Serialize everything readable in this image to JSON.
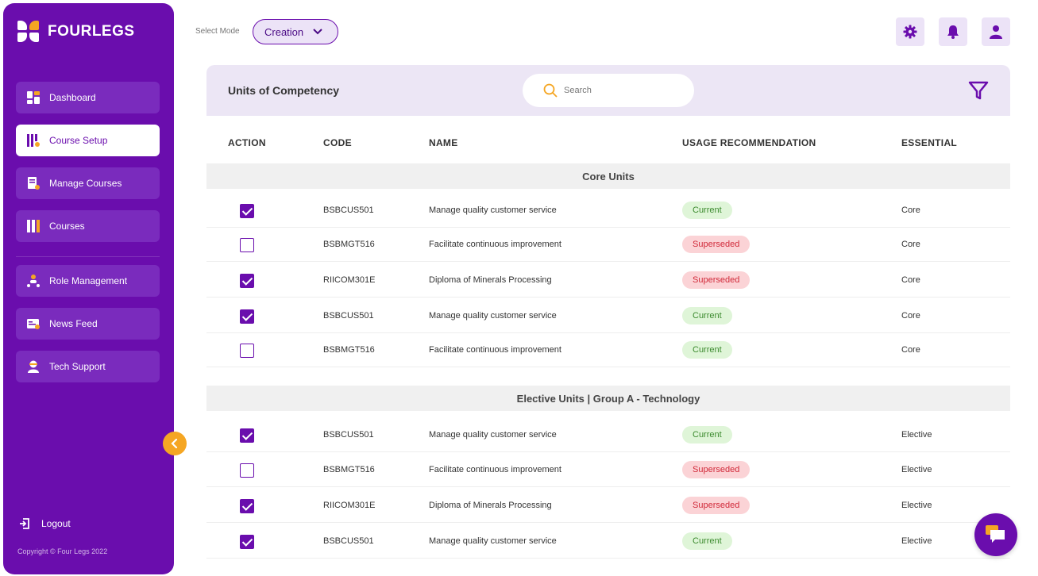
{
  "brand": {
    "name": "FOURLEGS"
  },
  "sidebar": {
    "items": [
      {
        "label": "Dashboard",
        "icon": "dashboard-icon"
      },
      {
        "label": "Course Setup",
        "icon": "course-setup-icon",
        "active": true
      },
      {
        "label": "Manage Courses",
        "icon": "manage-courses-icon"
      },
      {
        "label": "Courses",
        "icon": "courses-icon"
      },
      {
        "label": "Role Management",
        "icon": "role-management-icon"
      },
      {
        "label": "News Feed",
        "icon": "news-feed-icon"
      },
      {
        "label": "Tech Support",
        "icon": "tech-support-icon"
      }
    ],
    "logout_label": "Logout",
    "copyright": "Copyright © Four Legs 2022"
  },
  "topbar": {
    "mode_label": "Select Mode",
    "mode_value": "Creation"
  },
  "panel": {
    "title": "Units of Competency",
    "search_placeholder": "Search"
  },
  "table": {
    "headers": {
      "action": "ACTION",
      "code": "CODE",
      "name": "NAME",
      "usage": "USAGE RECOMMENDATION",
      "essential": "ESSENTIAL"
    },
    "groups": [
      {
        "title": "Core Units",
        "rows": [
          {
            "checked": true,
            "code": "BSBCUS501",
            "name": "Manage quality customer service",
            "usage": "Current",
            "essential": "Core"
          },
          {
            "checked": false,
            "code": "BSBMGT516",
            "name": "Facilitate continuous improvement",
            "usage": "Superseded",
            "essential": "Core"
          },
          {
            "checked": true,
            "code": "RIICOM301E",
            "name": "Diploma of Minerals Processing",
            "usage": "Superseded",
            "essential": "Core"
          },
          {
            "checked": true,
            "code": "BSBCUS501",
            "name": "Manage quality customer service",
            "usage": "Current",
            "essential": "Core"
          },
          {
            "checked": false,
            "code": "BSBMGT516",
            "name": "Facilitate continuous improvement",
            "usage": "Current",
            "essential": "Core"
          }
        ]
      },
      {
        "title": "Elective Units | Group A - Technology",
        "rows": [
          {
            "checked": true,
            "code": "BSBCUS501",
            "name": "Manage quality customer service",
            "usage": "Current",
            "essential": "Elective"
          },
          {
            "checked": false,
            "code": "BSBMGT516",
            "name": "Facilitate continuous improvement",
            "usage": "Superseded",
            "essential": "Elective"
          },
          {
            "checked": true,
            "code": "RIICOM301E",
            "name": "Diploma of Minerals Processing",
            "usage": "Superseded",
            "essential": "Elective"
          },
          {
            "checked": true,
            "code": "BSBCUS501",
            "name": "Manage quality customer service",
            "usage": "Current",
            "essential": "Elective"
          }
        ]
      }
    ]
  },
  "colors": {
    "primary": "#6a0dad",
    "accent": "#f5a623",
    "current_bg": "#dff5d8",
    "superseded_bg": "#fbd3d6"
  }
}
